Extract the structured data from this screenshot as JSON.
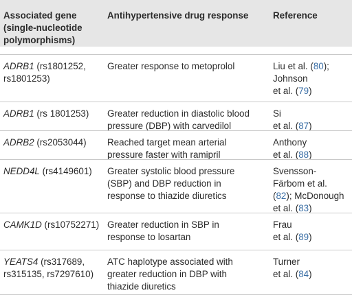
{
  "headers": {
    "col1_line1": "Associated gene",
    "col1_line2": "(single-nucleotide",
    "col1_line3": "polymorphisms)",
    "col2": "Antihypertensive drug response",
    "col3": "Reference"
  },
  "rows": [
    {
      "gene": "ADRB1",
      "snp_line1": " (rs1801252,",
      "snp_line2": "rs1801253)",
      "response_line1": "Greater response to metoprolol",
      "response_line2": "",
      "response_line3": "",
      "ref_line1": "Liu et al. (",
      "ref_num1": "80",
      "ref_line1_end": ");",
      "ref_line2": "Johnson",
      "ref_line3": "et al. (",
      "ref_num2": "79",
      "ref_line3_end": ")"
    },
    {
      "gene": "ADRB1",
      "snp_line1": " (rs 1801253)",
      "response_line1": "Greater reduction in diastolic blood",
      "response_line2": "pressure (DBP) with carvedilol",
      "ref_line1": "Si",
      "ref_line2": "et al. (",
      "ref_num": "87",
      "ref_line2_end": ")"
    },
    {
      "gene": "ADRB2",
      "snp_line1": " (rs2053044)",
      "response_line1": "Reached target mean arterial",
      "response_line2": "pressure faster with ramipril",
      "ref_line1": "Anthony",
      "ref_line2": "et al. (",
      "ref_num": "88",
      "ref_line2_end": ")"
    },
    {
      "gene": "NEDD4L",
      "snp_line1": " (rs4149601)",
      "response_line1": "Greater systolic blood pressure",
      "response_line2": "(SBP) and DBP reduction in",
      "response_line3": "response to thiazide diuretics",
      "ref_line1": "Svensson-",
      "ref_line2": "Färbom et al.",
      "ref_line3": "(",
      "ref_num1": "82",
      "ref_line3_mid": "); McDonough",
      "ref_line4": "et al. (",
      "ref_num2": "83",
      "ref_line4_end": ")"
    },
    {
      "gene": "CAMK1D",
      "snp_line1": " (rs10752271)",
      "response_line1": "Greater reduction in SBP in",
      "response_line2": "response to losartan",
      "ref_line1": "Frau",
      "ref_line2": "et al. (",
      "ref_num": "89",
      "ref_line2_end": ")"
    },
    {
      "gene": "YEATS4",
      "snp_line1": " (rs317689,",
      "snp_line2": "rs315135, rs7297610)",
      "response_line1": "ATC haplotype associated with",
      "response_line2": "greater reduction in DBP with",
      "response_line3": "thiazide diuretics",
      "ref_line1": "Turner",
      "ref_line2": "et al. (",
      "ref_num": "84",
      "ref_line2_end": ")"
    }
  ],
  "colors": {
    "header_bg": "#e6e6e6",
    "rule": "#c9c9c9",
    "text": "#2b2b2b",
    "link": "#3a6ea5"
  }
}
